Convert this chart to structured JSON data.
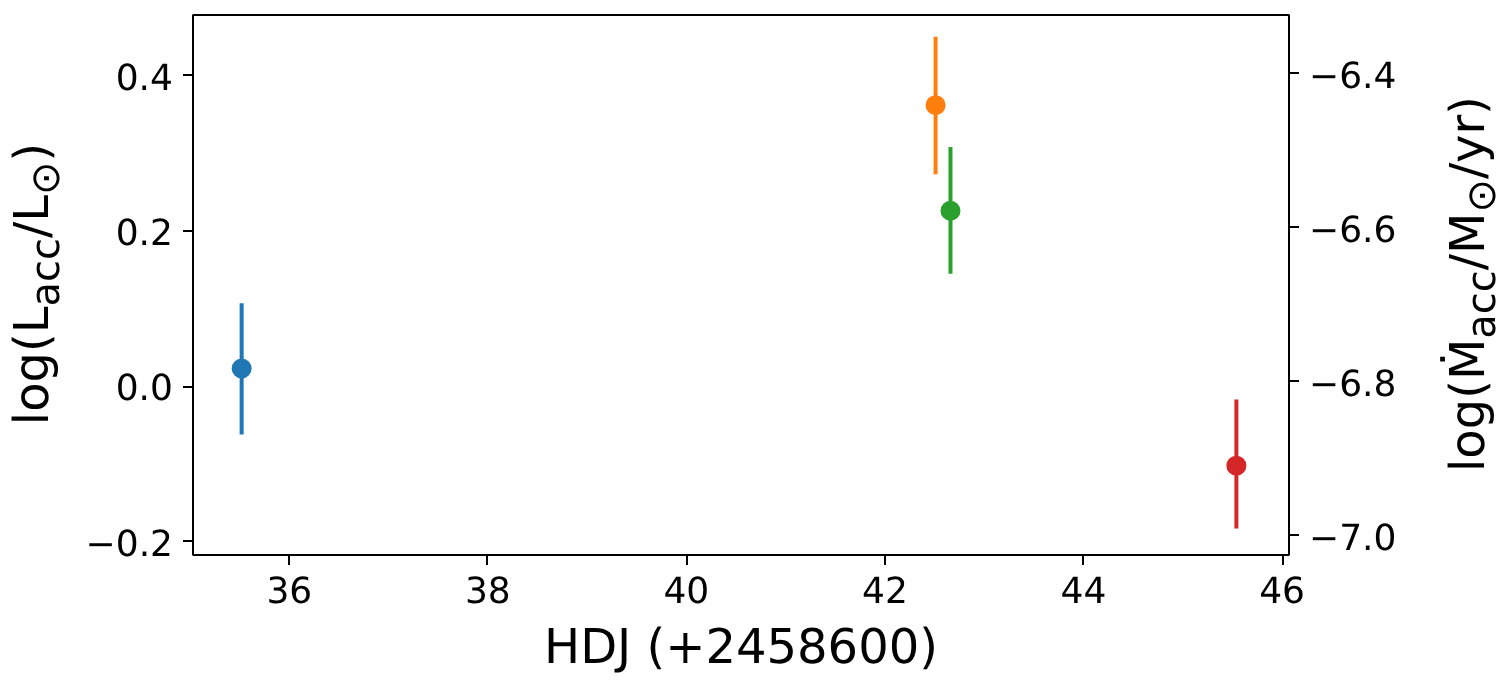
{
  "chart_data": {
    "type": "scatter",
    "xlabel": "HDJ (+2458600)",
    "ylabel": "log(L$_{acc}$/L$_{⊙}$)",
    "y2label": "log(Ṁ$_{acc}$/M$_{⊙}$/yr)",
    "xlim": [
      35.03,
      46.07
    ],
    "xticks": [
      36,
      38,
      40,
      42,
      44,
      46
    ],
    "ylim": [
      -0.217,
      0.478
    ],
    "yticks": [
      {
        "value": -0.2,
        "label": "−0.2"
      },
      {
        "value": 0.0,
        "label": "0.0"
      },
      {
        "value": 0.2,
        "label": "0.2"
      },
      {
        "value": 0.4,
        "label": "0.4"
      }
    ],
    "y2lim": [
      -7.025,
      -6.324
    ],
    "y2ticks": [
      {
        "value": -7.0,
        "label": "−7.0"
      },
      {
        "value": -6.8,
        "label": "−6.8"
      },
      {
        "value": -6.6,
        "label": "−6.6"
      },
      {
        "value": -6.4,
        "label": "−6.4"
      }
    ],
    "marker": "circle",
    "grid": false,
    "series": [
      {
        "color": "#1f77b4",
        "x": [
          35.52
        ],
        "values": [
          0.023
        ],
        "errors": [
          [
            -0.062,
            0.107
          ]
        ]
      },
      {
        "color": "#ff7f0e",
        "x": [
          42.51
        ],
        "values": [
          0.362
        ],
        "errors": [
          [
            0.273,
            0.45
          ]
        ]
      },
      {
        "color": "#2ca02c",
        "x": [
          42.66
        ],
        "values": [
          0.226
        ],
        "errors": [
          [
            0.145,
            0.308
          ]
        ]
      },
      {
        "color": "#d62728",
        "x": [
          45.54
        ],
        "values": [
          -0.102
        ],
        "errors": [
          [
            -0.183,
            -0.017
          ]
        ]
      }
    ]
  }
}
